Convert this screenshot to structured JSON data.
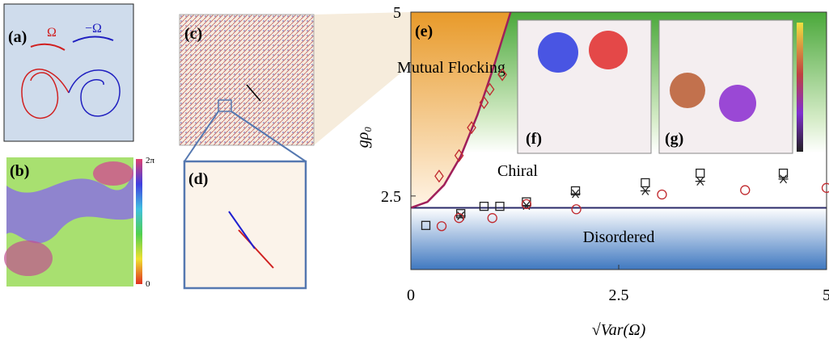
{
  "chart_data": {
    "type": "scatter",
    "xlabel": "√Var(Ω)",
    "ylabel": "gρ₀",
    "xlim": [
      0,
      5
    ],
    "ylim": [
      1.5,
      5
    ],
    "xticks": [
      0,
      2.5,
      5
    ],
    "yticks": [
      2.5,
      5
    ],
    "annotations": {
      "panel_e": "(e)",
      "flocking": "Mutual Flocking",
      "chiral": "Chiral",
      "disordered": "Disordered",
      "panel_f": "(f)",
      "panel_g": "(g)"
    },
    "boundary": {
      "color": "#a0205a",
      "x": [
        0,
        0.2,
        0.4,
        0.6,
        0.8,
        1.0,
        1.2
      ],
      "values": [
        2.34,
        2.42,
        2.65,
        3.04,
        3.6,
        4.27,
        5.0
      ]
    },
    "transition_level": 2.34,
    "series": [
      {
        "marker": "square",
        "color": "#222222",
        "x": [
          0.18,
          0.6,
          0.88,
          1.07,
          1.39,
          1.98,
          2.82,
          3.48,
          4.48
        ],
        "values": [
          2.1,
          2.26,
          2.36,
          2.36,
          2.42,
          2.57,
          2.68,
          2.81,
          2.81
        ]
      },
      {
        "marker": "star",
        "color": "#222222",
        "x": [
          0.6,
          1.39,
          1.98,
          2.82,
          3.48,
          4.48
        ],
        "values": [
          2.23,
          2.37,
          2.53,
          2.57,
          2.7,
          2.73
        ]
      },
      {
        "marker": "circle",
        "color": "#c0282d",
        "x": [
          0.37,
          0.58,
          0.98,
          1.39,
          1.99,
          3.02,
          4.02,
          5.0
        ],
        "values": [
          2.09,
          2.2,
          2.2,
          2.39,
          2.32,
          2.52,
          2.58,
          2.61
        ]
      },
      {
        "marker": "diamond",
        "color": "#c0282d",
        "x": [
          0.34,
          0.58,
          0.73,
          0.88,
          0.95,
          1.1
        ],
        "values": [
          2.77,
          3.05,
          3.43,
          3.77,
          3.95,
          4.15
        ]
      }
    ]
  },
  "panels": {
    "a": "(a)",
    "b": "(b)",
    "c": "(c)",
    "d": "(d)",
    "omega": "Ω",
    "minus_omega": "−Ω",
    "cbar_top": "2π",
    "cbar_bottom": "0"
  }
}
